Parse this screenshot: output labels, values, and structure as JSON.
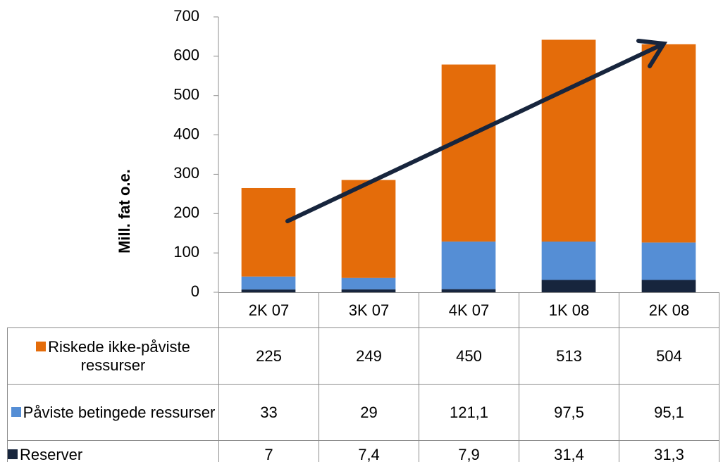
{
  "chart_data": {
    "type": "stacked_bar",
    "y_label": "Mill. fat o.e.",
    "categories": [
      "2K 07",
      "3K 07",
      "4K 07",
      "1K 08",
      "2K 08"
    ],
    "series": [
      {
        "name": "Riskede ikke-påviste ressurser",
        "color": "#e46c0a",
        "values": [
          225,
          249,
          450,
          513,
          504
        ]
      },
      {
        "name": "Påviste betingede ressurser",
        "color": "#558ed5",
        "values": [
          33,
          29,
          121.1,
          97.5,
          95.1
        ],
        "value_labels": [
          "33",
          "29",
          "121,1",
          "97,5",
          "95,1"
        ]
      },
      {
        "name": "Reserver",
        "color": "#17253d",
        "values": [
          7,
          7.4,
          7.9,
          31.4,
          31.3
        ],
        "value_labels": [
          "7",
          "7,4",
          "7,9",
          "31,4",
          "31,3"
        ]
      }
    ],
    "ylim": [
      0,
      700
    ],
    "yticks": [
      0,
      100,
      200,
      300,
      400,
      500,
      600,
      700
    ],
    "grid": false
  }
}
